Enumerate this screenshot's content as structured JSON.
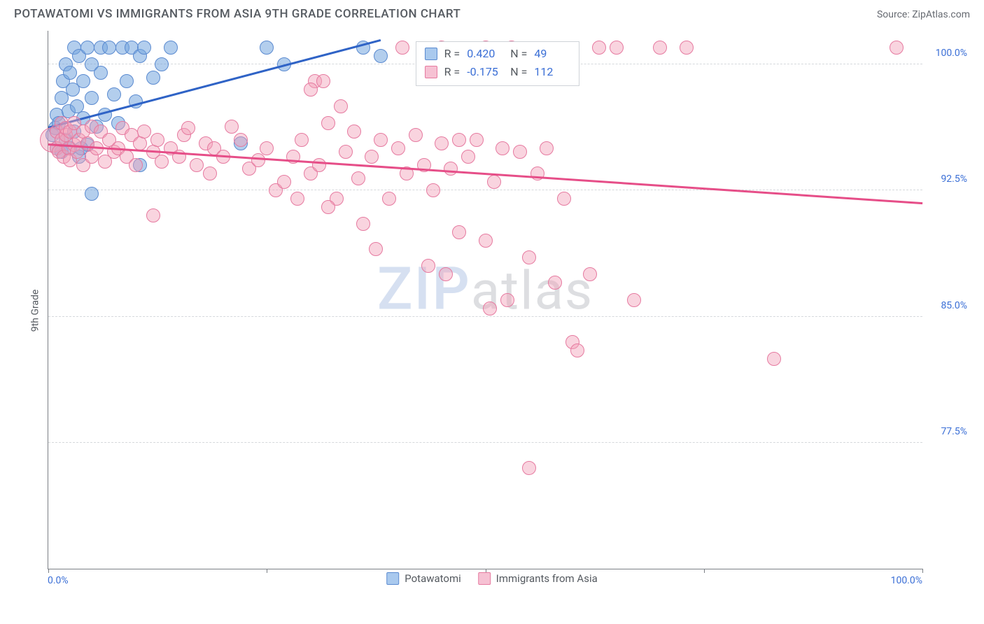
{
  "header": {
    "title": "POTAWATOMI VS IMMIGRANTS FROM ASIA 9TH GRADE CORRELATION CHART",
    "source": "Source: ZipAtlas.com"
  },
  "chart": {
    "type": "scatter",
    "ylabel": "9th Grade",
    "xlim": [
      0,
      100
    ],
    "ylim": [
      70,
      102
    ],
    "background_color": "#ffffff",
    "grid_color": "#d5d8dc",
    "axis_color": "#7b7f85",
    "yticks": [
      {
        "v": 77.5,
        "label": "77.5%"
      },
      {
        "v": 85.0,
        "label": "85.0%"
      },
      {
        "v": 92.5,
        "label": "92.5%"
      },
      {
        "v": 100.0,
        "label": "100.0%"
      }
    ],
    "xticks": [
      0,
      25,
      50,
      75,
      100
    ],
    "xaxis_labels": {
      "left": "0.0%",
      "right": "100.0%"
    },
    "watermark": {
      "z": "ZIP",
      "rest": "atlas"
    },
    "series": [
      {
        "name": "Potawatomi",
        "color_fill": "rgba(117,165,222,0.55)",
        "color_stroke": "#5a8ad0",
        "swatch_fill": "#a9c9ee",
        "swatch_stroke": "#5a8ad0",
        "marker_radius": 10,
        "trend": {
          "x1": 0,
          "y1": 96.3,
          "x2": 38,
          "y2": 101.5,
          "color": "#2f63c6"
        },
        "stats": {
          "R": "0.420",
          "N": "49"
        },
        "points": [
          [
            0.5,
            95.8
          ],
          [
            0.8,
            96.2
          ],
          [
            1.0,
            95.0
          ],
          [
            1.0,
            97.0
          ],
          [
            1.2,
            96.5
          ],
          [
            1.5,
            98.0
          ],
          [
            1.5,
            94.8
          ],
          [
            1.7,
            99.0
          ],
          [
            2.0,
            95.5
          ],
          [
            2.0,
            100.0
          ],
          [
            2.3,
            97.2
          ],
          [
            2.5,
            95.0
          ],
          [
            2.5,
            99.5
          ],
          [
            2.8,
            98.5
          ],
          [
            3.0,
            96.0
          ],
          [
            3.0,
            101.0
          ],
          [
            3.3,
            97.5
          ],
          [
            3.5,
            94.5
          ],
          [
            3.5,
            100.5
          ],
          [
            4.0,
            99.0
          ],
          [
            4.0,
            96.8
          ],
          [
            4.5,
            101.0
          ],
          [
            4.5,
            95.2
          ],
          [
            5.0,
            98.0
          ],
          [
            5.0,
            100.0
          ],
          [
            5.5,
            96.3
          ],
          [
            6.0,
            99.5
          ],
          [
            6.0,
            101.0
          ],
          [
            6.5,
            97.0
          ],
          [
            7.0,
            101.0
          ],
          [
            7.5,
            98.2
          ],
          [
            8.0,
            96.5
          ],
          [
            8.5,
            101.0
          ],
          [
            9.0,
            99.0
          ],
          [
            9.5,
            101.0
          ],
          [
            10.0,
            97.8
          ],
          [
            10.5,
            100.5
          ],
          [
            11.0,
            101.0
          ],
          [
            12.0,
            99.2
          ],
          [
            13.0,
            100.0
          ],
          [
            14.0,
            101.0
          ],
          [
            5.0,
            92.3
          ],
          [
            10.5,
            94.0
          ],
          [
            3.8,
            95.0
          ],
          [
            22.0,
            95.3
          ],
          [
            25.0,
            101.0
          ],
          [
            27.0,
            100.0
          ],
          [
            36.0,
            101.0
          ],
          [
            38.0,
            100.5
          ]
        ]
      },
      {
        "name": "Immigrants from Asia",
        "color_fill": "rgba(242,160,185,0.45)",
        "color_stroke": "#e67aa0",
        "swatch_fill": "#f6c1d3",
        "swatch_stroke": "#e67aa0",
        "marker_radius": 10,
        "trend": {
          "x1": 0,
          "y1": 95.3,
          "x2": 100,
          "y2": 91.8,
          "color": "#e64e88"
        },
        "stats": {
          "R": "-0.175",
          "N": "112"
        },
        "points": [
          [
            0.5,
            95.5,
            18
          ],
          [
            1.0,
            95.0
          ],
          [
            1.0,
            96.0
          ],
          [
            1.2,
            94.8
          ],
          [
            1.5,
            95.5
          ],
          [
            1.5,
            96.5
          ],
          [
            1.8,
            94.5
          ],
          [
            2.0,
            95.8
          ],
          [
            2.0,
            96.2
          ],
          [
            2.3,
            95.0
          ],
          [
            2.5,
            96.0
          ],
          [
            2.5,
            94.3
          ],
          [
            3.0,
            95.2
          ],
          [
            3.0,
            96.5
          ],
          [
            3.3,
            94.8
          ],
          [
            3.5,
            95.5
          ],
          [
            4.0,
            96.0
          ],
          [
            4.0,
            94.0
          ],
          [
            4.5,
            95.3
          ],
          [
            5.0,
            96.3
          ],
          [
            5.0,
            94.5
          ],
          [
            5.5,
            95.0
          ],
          [
            6.0,
            96.0
          ],
          [
            6.5,
            94.2
          ],
          [
            7.0,
            95.5
          ],
          [
            7.5,
            94.8
          ],
          [
            8.0,
            95.0
          ],
          [
            8.5,
            96.2
          ],
          [
            9.0,
            94.5
          ],
          [
            9.5,
            95.8
          ],
          [
            10.0,
            94.0
          ],
          [
            10.5,
            95.3
          ],
          [
            11.0,
            96.0
          ],
          [
            12.0,
            94.8
          ],
          [
            12.5,
            95.5
          ],
          [
            13.0,
            94.2
          ],
          [
            14.0,
            95.0
          ],
          [
            15.0,
            94.5
          ],
          [
            15.5,
            95.8
          ],
          [
            16.0,
            96.2
          ],
          [
            17.0,
            94.0
          ],
          [
            18.0,
            95.3
          ],
          [
            18.5,
            93.5
          ],
          [
            19.0,
            95.0
          ],
          [
            20.0,
            94.5
          ],
          [
            21.0,
            96.3
          ],
          [
            22.0,
            95.5
          ],
          [
            23.0,
            93.8
          ],
          [
            24.0,
            94.3
          ],
          [
            25.0,
            95.0
          ],
          [
            26.0,
            92.5
          ],
          [
            27.0,
            93.0
          ],
          [
            28.0,
            94.5
          ],
          [
            29.0,
            95.5
          ],
          [
            30.0,
            93.5
          ],
          [
            30.5,
            99.0
          ],
          [
            31.0,
            94.0
          ],
          [
            32.0,
            96.5
          ],
          [
            33.0,
            92.0
          ],
          [
            34.0,
            94.8
          ],
          [
            35.0,
            96.0
          ],
          [
            35.5,
            93.2
          ],
          [
            36.0,
            90.5
          ],
          [
            37.0,
            94.5
          ],
          [
            38.0,
            95.5
          ],
          [
            39.0,
            92.0
          ],
          [
            40.0,
            95.0
          ],
          [
            40.5,
            101.0
          ],
          [
            41.0,
            93.5
          ],
          [
            42.0,
            95.8
          ],
          [
            43.0,
            94.0
          ],
          [
            43.5,
            88.0
          ],
          [
            44.0,
            92.5
          ],
          [
            45.0,
            95.3
          ],
          [
            45.5,
            87.5
          ],
          [
            46.0,
            93.8
          ],
          [
            47.0,
            90.0
          ],
          [
            48.0,
            94.5
          ],
          [
            49.0,
            95.5
          ],
          [
            50.0,
            89.5
          ],
          [
            50.0,
            101.0
          ],
          [
            51.0,
            93.0
          ],
          [
            52.0,
            95.0
          ],
          [
            52.5,
            86.0
          ],
          [
            53.0,
            101.0
          ],
          [
            54.0,
            94.8
          ],
          [
            55.0,
            88.5
          ],
          [
            56.0,
            93.5
          ],
          [
            57.0,
            95.0
          ],
          [
            58.0,
            87.0
          ],
          [
            59.0,
            92.0
          ],
          [
            60.0,
            83.5
          ],
          [
            63.0,
            101.0
          ],
          [
            55.0,
            76.0
          ],
          [
            50.5,
            85.5
          ],
          [
            60.5,
            83.0
          ],
          [
            62.0,
            87.5
          ],
          [
            65.0,
            101.0
          ],
          [
            67.0,
            86.0
          ],
          [
            70.0,
            101.0
          ],
          [
            83.0,
            82.5
          ],
          [
            12.0,
            91.0
          ],
          [
            45.0,
            101.0
          ],
          [
            47.0,
            95.5
          ],
          [
            48.5,
            100.0
          ],
          [
            37.5,
            89.0
          ],
          [
            30.0,
            98.5
          ],
          [
            31.5,
            99.0
          ],
          [
            33.5,
            97.5
          ],
          [
            73.0,
            101.0
          ],
          [
            97.0,
            101.0
          ],
          [
            32.0,
            91.5
          ],
          [
            28.5,
            92.0
          ]
        ]
      }
    ],
    "stats_box": {
      "left_pct": 42,
      "top_pct": 2
    },
    "legend_bottom": true
  }
}
